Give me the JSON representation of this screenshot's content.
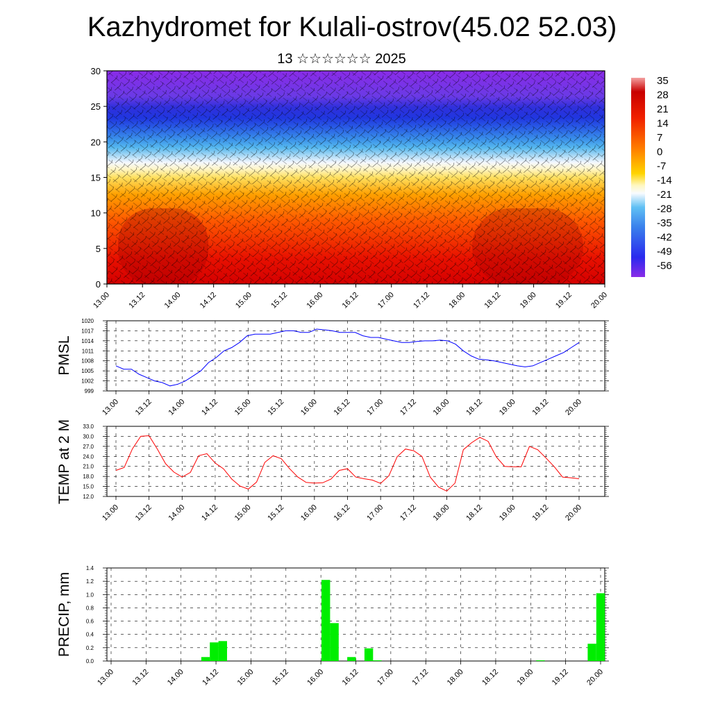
{
  "title": "Kazhydromet for Kulali-ostrov(45.02 52.03)",
  "subtitle": "13 ☆☆☆☆☆☆ 2025",
  "chart_data": [
    {
      "type": "heatmap",
      "ylim": [
        0,
        30
      ],
      "yticks": [
        "0",
        "5",
        "10",
        "15",
        "20",
        "25",
        "30"
      ],
      "xticks": [
        "13.00",
        "13.12",
        "14.00",
        "14.12",
        "15.00",
        "15.12",
        "16.00",
        "16.12",
        "17.00",
        "17.12",
        "18.00",
        "18.12",
        "19.00",
        "19.12",
        "20.00"
      ],
      "colorbar_labels": [
        "35",
        "28",
        "21",
        "14",
        "7",
        "0",
        "-7",
        "-14",
        "-21",
        "-28",
        "-35",
        "-42",
        "-49",
        "-56"
      ],
      "colorbar_range": [
        -63,
        42
      ],
      "colors": {
        "hot": "#c80000",
        "warm": "#ff6a00",
        "mild": "#ffd400",
        "neutral": "#ffffff",
        "cool": "#36b0f0",
        "cold": "#2040e8",
        "coldest": "#8a2be2"
      }
    },
    {
      "type": "line",
      "ylabel": "PMSL",
      "ylim": [
        999,
        1020
      ],
      "yticks": [
        "999",
        "1002",
        "1005",
        "1008",
        "1011",
        "1014",
        "1017",
        "1020"
      ],
      "xticks": [
        "13.00",
        "13.12",
        "14.00",
        "14.12",
        "15.00",
        "15.12",
        "16.00",
        "16.12",
        "17.00",
        "17.12",
        "18.00",
        "18.12",
        "19.00",
        "19.12",
        "20.00"
      ],
      "color": "#0000ff",
      "series": [
        {
          "values": [
            1006.5,
            1005.5,
            1005.5,
            1004,
            1003,
            1002,
            1001.5,
            1000.5,
            1001,
            1002,
            1003.5,
            1005,
            1007.5,
            1009,
            1011,
            1012,
            1013.5,
            1015.5,
            1016,
            1016,
            1016,
            1016.5,
            1017,
            1017,
            1016.5,
            1016.5,
            1017.5,
            1017.3,
            1017,
            1016.5,
            1016.5,
            1016.5,
            1015.5,
            1015,
            1015,
            1014.5,
            1014,
            1013.5,
            1013.5,
            1013.8,
            1014,
            1014,
            1014.2,
            1014,
            1013,
            1011,
            1009.5,
            1008.5,
            1008.3,
            1008,
            1007.5,
            1007,
            1006.5,
            1006.2,
            1006.5,
            1007.5,
            1008.5,
            1009.5,
            1010.5,
            1012,
            1013.5
          ]
        }
      ]
    },
    {
      "type": "line",
      "ylabel": "TEMP at 2 M",
      "ylim": [
        12,
        33
      ],
      "yticks": [
        "12.0",
        "15.0",
        "18.0",
        "21.0",
        "24.0",
        "27.0",
        "30.0",
        "33.0"
      ],
      "xticks": [
        "13.00",
        "13.12",
        "14.00",
        "14.12",
        "15.00",
        "15.12",
        "16.00",
        "16.12",
        "17.00",
        "17.12",
        "18.00",
        "18.12",
        "19.00",
        "19.12",
        "20.00"
      ],
      "color": "#ff0000",
      "series": [
        {
          "values": [
            19.8,
            20.7,
            26.3,
            30.0,
            30.2,
            26.2,
            21.8,
            19.3,
            17.8,
            19.2,
            24.2,
            24.8,
            22.0,
            20.3,
            17.2,
            15.1,
            14.2,
            16.3,
            22.2,
            24.2,
            23.3,
            20.3,
            17.8,
            16.2,
            16.0,
            16.1,
            17.2,
            19.8,
            20.3,
            17.8,
            17.3,
            16.9,
            15.9,
            18.2,
            23.9,
            26.2,
            25.7,
            24.0,
            17.8,
            14.8,
            13.6,
            16.0,
            26.0,
            28.1,
            29.7,
            28.5,
            23.8,
            21.0,
            20.9,
            20.9,
            27.0,
            26.0,
            23.5,
            20.9,
            17.8,
            17.6,
            17.3
          ]
        }
      ]
    },
    {
      "type": "bar",
      "ylabel": "PRECIP, mm",
      "ylim": [
        0,
        1.4
      ],
      "yticks": [
        "0.0",
        "0.2",
        "0.4",
        "0.6",
        "0.8",
        "1.0",
        "1.2",
        "1.4"
      ],
      "xticks": [
        "13.00",
        "13.12",
        "14.00",
        "14.12",
        "15.00",
        "15.12",
        "16.00",
        "16.12",
        "17.00",
        "17.12",
        "18.00",
        "18.12",
        "19.00",
        "19.12",
        "20.00"
      ],
      "color": "#00ee00",
      "series": [
        {
          "values": [
            0,
            0,
            0,
            0,
            0,
            0,
            0,
            0,
            0,
            0,
            0,
            0.06,
            0.28,
            0.3,
            0,
            0,
            0,
            0,
            0,
            0,
            0,
            0,
            0,
            0,
            0,
            1.22,
            0.57,
            0,
            0.06,
            0,
            0.19,
            0.01,
            0,
            0,
            0,
            0,
            0,
            0,
            0,
            0,
            0,
            0,
            0,
            0,
            0,
            0,
            0,
            0,
            0,
            0,
            0.01,
            0,
            0,
            0,
            0,
            0,
            0.26,
            1.02
          ]
        }
      ]
    }
  ]
}
